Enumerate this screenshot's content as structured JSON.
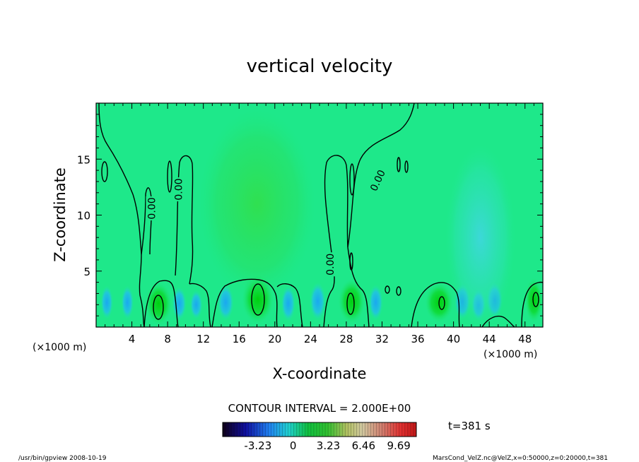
{
  "chart_data": {
    "type": "heatmap",
    "title": "vertical velocity",
    "xlabel": "X-coordinate",
    "ylabel": "Z-coordinate",
    "x_unit_left": "(×1000 m)",
    "x_unit_right": "(×1000 m)",
    "xlim": [
      0,
      50
    ],
    "ylim": [
      0,
      20
    ],
    "x_ticks": [
      4,
      8,
      12,
      16,
      20,
      24,
      28,
      32,
      36,
      40,
      44,
      48
    ],
    "y_ticks": [
      5,
      10,
      15
    ],
    "contour_interval_text": "CONTOUR INTERVAL = 2.000E+00",
    "contour_labels": [
      {
        "text": "0.00",
        "x": 6.2,
        "z": 10.6,
        "rot": -90
      },
      {
        "text": "0.00",
        "x": 9.2,
        "z": 12.3,
        "rot": -90
      },
      {
        "text": "0.00",
        "x": 26.2,
        "z": 5.6,
        "rot": -90
      },
      {
        "text": "0.00",
        "x": 31.5,
        "z": 13.1,
        "rot": -65
      }
    ],
    "warm_cells": [
      {
        "x": 7.0,
        "z": 2.1,
        "rx": 1.5,
        "rz": 1.9
      },
      {
        "x": 18.1,
        "z": 2.5,
        "rx": 1.8,
        "rz": 2.2
      },
      {
        "x": 28.6,
        "z": 2.3,
        "rx": 1.5,
        "rz": 2.0
      },
      {
        "x": 38.4,
        "z": 2.2,
        "rx": 1.6,
        "rz": 1.8
      },
      {
        "x": 49.0,
        "z": 2.4,
        "rx": 1.0,
        "rz": 2.0
      },
      {
        "x": 18.0,
        "z": 11.0,
        "rx": 6.5,
        "rz": 8.5
      }
    ],
    "cool_cells": [
      {
        "x": 1.2,
        "z": 2.2,
        "rx": 0.7,
        "rz": 1.5
      },
      {
        "x": 3.5,
        "z": 2.2,
        "rx": 0.7,
        "rz": 1.5
      },
      {
        "x": 9.3,
        "z": 2.1,
        "rx": 0.8,
        "rz": 1.5
      },
      {
        "x": 11.2,
        "z": 2.0,
        "rx": 0.7,
        "rz": 1.3
      },
      {
        "x": 14.5,
        "z": 2.2,
        "rx": 0.9,
        "rz": 1.6
      },
      {
        "x": 21.5,
        "z": 2.1,
        "rx": 0.8,
        "rz": 1.6
      },
      {
        "x": 24.8,
        "z": 2.3,
        "rx": 0.9,
        "rz": 1.7
      },
      {
        "x": 31.3,
        "z": 2.2,
        "rx": 0.8,
        "rz": 1.6
      },
      {
        "x": 41.0,
        "z": 2.3,
        "rx": 0.9,
        "rz": 1.6
      },
      {
        "x": 42.8,
        "z": 2.0,
        "rx": 0.8,
        "rz": 1.4
      },
      {
        "x": 44.6,
        "z": 2.4,
        "rx": 0.9,
        "rz": 1.6
      },
      {
        "x": 43.0,
        "z": 8.0,
        "rx": 4.0,
        "rz": 8.5
      }
    ],
    "colorbar": {
      "ticks": [
        "-3.23",
        "0",
        "3.23",
        "6.46",
        "9.69"
      ],
      "tick_values": [
        -3.23,
        0,
        3.23,
        6.46,
        9.69
      ],
      "range": [
        -6.46,
        11.3
      ]
    },
    "time_label": "t=381 s",
    "footer_left": "/usr/bin/gpview   2008-10-19",
    "footer_right": "MarsCond_VelZ.nc@VelZ,x=0:50000,z=0:20000,t=381"
  }
}
